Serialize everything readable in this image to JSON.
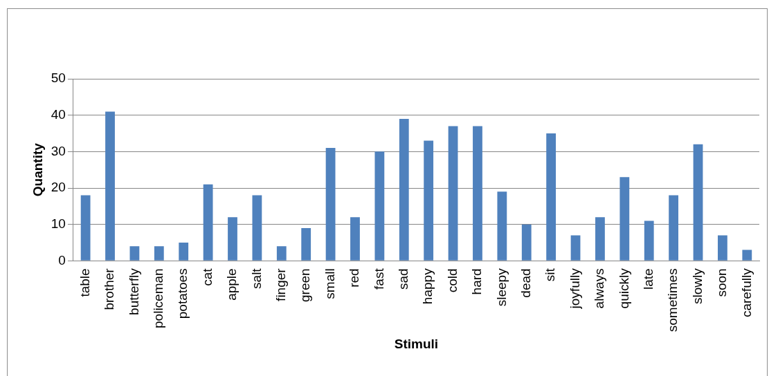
{
  "chart_data": {
    "type": "bar",
    "xlabel": "Stimuli",
    "ylabel": "Quantity",
    "categories": [
      "table",
      "brother",
      "butterfly",
      "policeman",
      "potatoes",
      "cat",
      "apple",
      "salt",
      "finger",
      "green",
      "small",
      "red",
      "fast",
      "sad",
      "happy",
      "cold",
      "hard",
      "sleepy",
      "dead",
      "sit",
      "joyfully",
      "always",
      "quickly",
      "late",
      "sometimes",
      "slowly",
      "soon",
      "carefully"
    ],
    "values": [
      18,
      41,
      4,
      4,
      5,
      21,
      12,
      18,
      4,
      9,
      31,
      12,
      30,
      39,
      33,
      37,
      37,
      19,
      10,
      35,
      7,
      12,
      23,
      11,
      18,
      32,
      7,
      3
    ],
    "color": "#4f81bd",
    "ylim": [
      0,
      50
    ],
    "yticks": [
      0,
      10,
      20,
      30,
      40,
      50
    ],
    "grid": "y",
    "legend": false
  }
}
